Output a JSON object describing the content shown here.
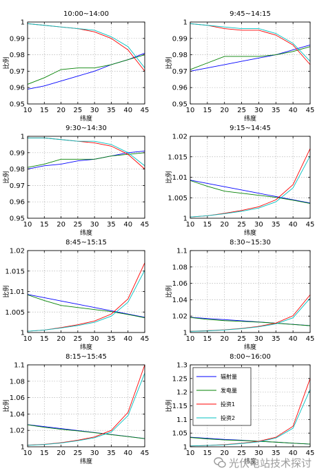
{
  "chart_data": [
    {
      "type": "line",
      "title": "10:00~14:00",
      "xlabel": "纬度",
      "ylabel": "比例",
      "x": [
        10,
        15,
        20,
        25,
        30,
        35,
        40,
        45
      ],
      "xticks": [
        "10",
        "15",
        "20",
        "25",
        "30",
        "35",
        "40",
        "45"
      ],
      "ylim": [
        0.95,
        1.0
      ],
      "yticks": [
        0.95,
        0.96,
        0.97,
        0.98,
        0.99,
        1.0
      ],
      "ytick_labels": [
        "0.95",
        "0.96",
        "0.97",
        "0.98",
        "0.99",
        "1"
      ],
      "grid": true,
      "series": [
        {
          "key": "radiation",
          "values": [
            0.959,
            0.961,
            0.964,
            0.967,
            0.97,
            0.974,
            0.977,
            0.981
          ]
        },
        {
          "key": "generation",
          "values": [
            0.962,
            0.966,
            0.971,
            0.972,
            0.972,
            0.974,
            0.977,
            0.98
          ]
        },
        {
          "key": "invest1",
          "values": [
            0.999,
            0.998,
            0.997,
            0.996,
            0.994,
            0.99,
            0.983,
            0.97
          ]
        },
        {
          "key": "invest2",
          "values": [
            0.999,
            0.998,
            0.997,
            0.996,
            0.995,
            0.991,
            0.985,
            0.972
          ]
        }
      ]
    },
    {
      "type": "line",
      "title": "9:45~14:15",
      "xlabel": "纬度",
      "ylabel": "比例",
      "x": [
        10,
        15,
        20,
        25,
        30,
        35,
        40,
        45
      ],
      "xticks": [
        "10",
        "15",
        "20",
        "25",
        "30",
        "35",
        "40",
        "45"
      ],
      "ylim": [
        0.95,
        1.0
      ],
      "yticks": [
        0.95,
        0.96,
        0.97,
        0.98,
        0.99,
        1.0
      ],
      "ytick_labels": [
        "0.95",
        "0.96",
        "0.97",
        "0.98",
        "0.99",
        "1"
      ],
      "grid": true,
      "series": [
        {
          "key": "radiation",
          "values": [
            0.97,
            0.972,
            0.974,
            0.976,
            0.978,
            0.98,
            0.983,
            0.986
          ]
        },
        {
          "key": "generation",
          "values": [
            0.971,
            0.975,
            0.979,
            0.979,
            0.979,
            0.98,
            0.982,
            0.985
          ]
        },
        {
          "key": "invest1",
          "values": [
            0.999,
            0.998,
            0.996,
            0.995,
            0.995,
            0.992,
            0.986,
            0.974
          ]
        },
        {
          "key": "invest2",
          "values": [
            0.999,
            0.998,
            0.997,
            0.996,
            0.996,
            0.993,
            0.987,
            0.976
          ]
        }
      ]
    },
    {
      "type": "line",
      "title": "9:30~14:30",
      "xlabel": "纬度",
      "ylabel": "比例",
      "x": [
        10,
        15,
        20,
        25,
        30,
        35,
        40,
        45
      ],
      "xticks": [
        "10",
        "15",
        "20",
        "25",
        "30",
        "35",
        "40",
        "45"
      ],
      "ylim": [
        0.95,
        1.0
      ],
      "yticks": [
        0.95,
        0.96,
        0.97,
        0.98,
        0.99,
        1.0
      ],
      "ytick_labels": [
        "0.95",
        "0.96",
        "0.97",
        "0.98",
        "0.99",
        "1"
      ],
      "grid": true,
      "series": [
        {
          "key": "radiation",
          "values": [
            0.98,
            0.982,
            0.983,
            0.985,
            0.986,
            0.988,
            0.99,
            0.991
          ]
        },
        {
          "key": "generation",
          "values": [
            0.981,
            0.983,
            0.986,
            0.986,
            0.986,
            0.988,
            0.989,
            0.99
          ]
        },
        {
          "key": "invest1",
          "values": [
            0.999,
            0.999,
            0.998,
            0.997,
            0.996,
            0.994,
            0.989,
            0.98
          ]
        },
        {
          "key": "invest2",
          "values": [
            0.999,
            0.999,
            0.998,
            0.997,
            0.997,
            0.995,
            0.99,
            0.982
          ]
        }
      ]
    },
    {
      "type": "line",
      "title": "9:15~14:45",
      "xlabel": "纬度",
      "ylabel": "比例",
      "x": [
        10,
        15,
        20,
        25,
        30,
        35,
        40,
        45
      ],
      "xticks": [
        "10",
        "15",
        "20",
        "25",
        "30",
        "35",
        "40",
        "45"
      ],
      "ylim": [
        1.0,
        1.02
      ],
      "yticks": [
        1.0,
        1.005,
        1.01,
        1.015,
        1.02
      ],
      "ytick_labels": [
        "1",
        "1.005",
        "1.01",
        "1.015",
        "1.02"
      ],
      "grid": true,
      "series": [
        {
          "key": "radiation",
          "values": [
            1.0093,
            1.0085,
            1.0077,
            1.0069,
            1.0061,
            1.0053,
            1.0045,
            1.0037
          ]
        },
        {
          "key": "generation",
          "values": [
            1.0092,
            1.0078,
            1.0066,
            1.0061,
            1.0056,
            1.0051,
            1.0044,
            1.0036
          ]
        },
        {
          "key": "invest1",
          "values": [
            1.0003,
            1.0006,
            1.0012,
            1.0019,
            1.0028,
            1.0045,
            1.0082,
            1.017
          ]
        },
        {
          "key": "invest2",
          "values": [
            1.0003,
            1.0006,
            1.0011,
            1.0017,
            1.0025,
            1.004,
            1.0074,
            1.0152
          ]
        }
      ]
    },
    {
      "type": "line",
      "title": "8:45~15:15",
      "xlabel": "纬度",
      "ylabel": "比例",
      "x": [
        10,
        15,
        20,
        25,
        30,
        35,
        40,
        45
      ],
      "xticks": [
        "10",
        "15",
        "20",
        "25",
        "30",
        "35",
        "40",
        "45"
      ],
      "ylim": [
        1.0,
        1.02
      ],
      "yticks": [
        1.0,
        1.005,
        1.01,
        1.015,
        1.02
      ],
      "ytick_labels": [
        "1",
        "1.005",
        "1.01",
        "1.015",
        "1.02"
      ],
      "grid": true,
      "series": [
        {
          "key": "radiation",
          "values": [
            1.0093,
            1.0085,
            1.0077,
            1.0069,
            1.0061,
            1.0053,
            1.0045,
            1.0037
          ]
        },
        {
          "key": "generation",
          "values": [
            1.0092,
            1.0078,
            1.0066,
            1.0061,
            1.0056,
            1.0051,
            1.0044,
            1.0036
          ]
        },
        {
          "key": "invest1",
          "values": [
            1.0003,
            1.0006,
            1.0012,
            1.0019,
            1.0028,
            1.0045,
            1.0082,
            1.017
          ]
        },
        {
          "key": "invest2",
          "values": [
            1.0003,
            1.0006,
            1.0011,
            1.0017,
            1.0025,
            1.004,
            1.0074,
            1.0152
          ]
        }
      ]
    },
    {
      "type": "line",
      "title": "8:30~15:30",
      "xlabel": "纬度",
      "ylabel": "比例",
      "x": [
        10,
        15,
        20,
        25,
        30,
        35,
        40,
        45
      ],
      "xticks": [
        "10",
        "15",
        "20",
        "25",
        "30",
        "35",
        "40",
        "45"
      ],
      "ylim": [
        1.0,
        1.1
      ],
      "yticks": [
        1.0,
        1.02,
        1.04,
        1.06,
        1.08,
        1.1
      ],
      "ytick_labels": [
        "1",
        "1.02",
        "1.04",
        "1.06",
        "1.08",
        "1.1"
      ],
      "grid": true,
      "series": [
        {
          "key": "radiation",
          "values": [
            1.0185,
            1.0171,
            1.0157,
            1.0143,
            1.0129,
            1.0114,
            1.0099,
            1.0084
          ]
        },
        {
          "key": "generation",
          "values": [
            1.0183,
            1.016,
            1.0145,
            1.0136,
            1.0127,
            1.0113,
            1.0098,
            1.0083
          ]
        },
        {
          "key": "invest1",
          "values": [
            1.0015,
            1.0022,
            1.0033,
            1.005,
            1.0075,
            1.0115,
            1.0205,
            1.046
          ]
        },
        {
          "key": "invest2",
          "values": [
            1.0014,
            1.002,
            1.0031,
            1.0047,
            1.007,
            1.0105,
            1.018,
            1.042
          ]
        }
      ]
    },
    {
      "type": "line",
      "title": "8:15~15:45",
      "xlabel": "纬度",
      "ylabel": "比例",
      "x": [
        10,
        15,
        20,
        25,
        30,
        35,
        40,
        45
      ],
      "xticks": [
        "10",
        "15",
        "20",
        "25",
        "30",
        "35",
        "40",
        "45"
      ],
      "ylim": [
        1.0,
        1.1
      ],
      "yticks": [
        1.0,
        1.02,
        1.04,
        1.06,
        1.08,
        1.1
      ],
      "ytick_labels": [
        "1",
        "1.02",
        "1.04",
        "1.06",
        "1.08",
        "1.1"
      ],
      "grid": true,
      "series": [
        {
          "key": "radiation",
          "values": [
            1.027,
            1.0246,
            1.0222,
            1.0198,
            1.0174,
            1.015,
            1.0126,
            1.01
          ]
        },
        {
          "key": "generation",
          "values": [
            1.0268,
            1.0238,
            1.0214,
            1.0194,
            1.0172,
            1.0148,
            1.0124,
            1.0099
          ]
        },
        {
          "key": "invest1",
          "values": [
            1.002,
            1.003,
            1.005,
            1.008,
            1.012,
            1.02,
            1.042,
            1.1
          ]
        },
        {
          "key": "invest2",
          "values": [
            1.0018,
            1.0028,
            1.0046,
            1.0074,
            1.011,
            1.018,
            1.038,
            1.09
          ]
        }
      ]
    },
    {
      "type": "line",
      "title": "8:00~16:00",
      "xlabel": "纬度",
      "ylabel": "比例",
      "x": [
        10,
        15,
        20,
        25,
        30,
        35,
        40,
        45
      ],
      "xticks": [
        "10",
        "15",
        "20",
        "25",
        "30",
        "35",
        "40",
        "45"
      ],
      "ylim": [
        1.0,
        1.3
      ],
      "yticks": [
        1.0,
        1.05,
        1.1,
        1.15,
        1.2,
        1.25,
        1.3
      ],
      "ytick_labels": [
        "1",
        "1.05",
        "1.1",
        "1.15",
        "1.2",
        "1.25",
        "1.3"
      ],
      "grid": true,
      "legend": "top-left",
      "series": [
        {
          "key": "radiation",
          "name": "辐射量",
          "values": [
            1.035,
            1.031,
            1.027,
            1.024,
            1.02,
            1.017,
            1.013,
            1.01
          ]
        },
        {
          "key": "generation",
          "name": "发电量",
          "values": [
            1.034,
            1.029,
            1.025,
            1.023,
            1.02,
            1.017,
            1.013,
            1.01
          ]
        },
        {
          "key": "invest1",
          "name": "投资1",
          "values": [
            1.003,
            1.005,
            1.008,
            1.013,
            1.02,
            1.035,
            1.075,
            1.25
          ]
        },
        {
          "key": "invest2",
          "name": "投资2",
          "values": [
            1.003,
            1.005,
            1.007,
            1.012,
            1.018,
            1.032,
            1.068,
            1.21
          ]
        }
      ]
    }
  ],
  "series_colors": {
    "radiation": "#0000ff",
    "generation": "#008000",
    "invest1": "#ff0000",
    "invest2": "#00bfbf"
  },
  "watermark": {
    "icon": "wechat-icon",
    "text": "光伏电站技术探讨"
  }
}
